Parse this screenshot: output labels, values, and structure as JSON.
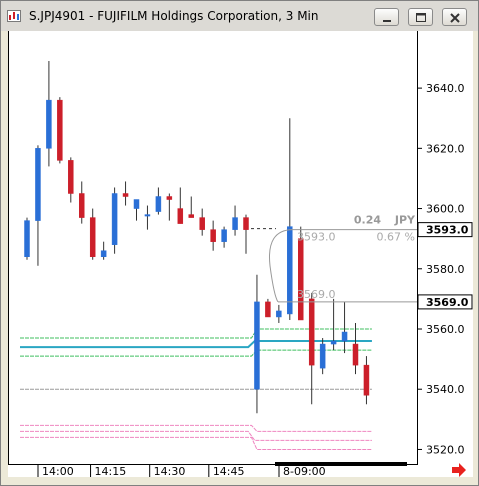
{
  "window": {
    "title": "S.JPJ4901 - FUJIFILM Holdings Corporation, 3 Min",
    "buttons": [
      "minimize",
      "maximize",
      "close"
    ]
  },
  "colors": {
    "up": "#2a6fd6",
    "down": "#cc1f2a",
    "line_blue": "#2aa6c3",
    "line_green": "#3fbf5f",
    "line_pink": "#ef86c0",
    "line_gray": "#9a9a9a",
    "scroll_arrow": "#e8221e"
  },
  "chart_data": {
    "type": "candlestick",
    "ylim": [
      3515,
      3650
    ],
    "yticks": [
      3520,
      3540,
      3560,
      3580,
      3600,
      3620,
      3640
    ],
    "ytick_labels": [
      "3520.0",
      "3540.0",
      "3560.0",
      "3580.0",
      "3600.0",
      "3620.0",
      "3640.0"
    ],
    "xtick_labels": [
      "14:00",
      "14:15",
      "14:30",
      "14:45",
      "8-09:00"
    ],
    "grid": false,
    "candles": [
      {
        "open": 3584,
        "high": 3597,
        "low": 3583,
        "close": 3596
      },
      {
        "open": 3596,
        "high": 3621,
        "low": 3581,
        "close": 3620
      },
      {
        "open": 3620,
        "high": 3649,
        "low": 3614,
        "close": 3636
      },
      {
        "open": 3636,
        "high": 3637,
        "low": 3615,
        "close": 3616
      },
      {
        "open": 3616,
        "high": 3617,
        "low": 3602,
        "close": 3605
      },
      {
        "open": 3605,
        "high": 3609,
        "low": 3595,
        "close": 3597
      },
      {
        "open": 3597,
        "high": 3600,
        "low": 3583,
        "close": 3584
      },
      {
        "open": 3584,
        "high": 3589,
        "low": 3583,
        "close": 3586
      },
      {
        "open": 3588,
        "high": 3607,
        "low": 3585,
        "close": 3605
      },
      {
        "open": 3605,
        "high": 3609,
        "low": 3601,
        "close": 3604
      },
      {
        "open": 3600,
        "high": 3603,
        "low": 3596,
        "close": 3603
      },
      {
        "open": 3598,
        "high": 3601,
        "low": 3593,
        "close": 3598
      },
      {
        "open": 3599,
        "high": 3607,
        "low": 3598,
        "close": 3604
      },
      {
        "open": 3604,
        "high": 3605,
        "low": 3596,
        "close": 3603
      },
      {
        "open": 3600,
        "high": 3607,
        "low": 3595,
        "close": 3595
      },
      {
        "open": 3598,
        "high": 3604,
        "low": 3597,
        "close": 3597
      },
      {
        "open": 3597,
        "high": 3600,
        "low": 3591,
        "close": 3593
      },
      {
        "open": 3593,
        "high": 3596,
        "low": 3586,
        "close": 3589
      },
      {
        "open": 3589,
        "high": 3594,
        "low": 3587,
        "close": 3593
      },
      {
        "open": 3593,
        "high": 3601,
        "low": 3591,
        "close": 3597
      },
      {
        "open": 3597,
        "high": 3598,
        "low": 3585,
        "close": 3593
      },
      {
        "open": 3540,
        "high": 3578,
        "low": 3532,
        "close": 3569
      },
      {
        "open": 3569,
        "high": 3570,
        "low": 3564,
        "close": 3564
      },
      {
        "open": 3564,
        "high": 3568,
        "low": 3562,
        "close": 3566
      },
      {
        "open": 3565,
        "high": 3630,
        "low": 3563,
        "close": 3594
      },
      {
        "open": 3590,
        "high": 3594,
        "low": 3563,
        "close": 3563
      },
      {
        "open": 3570,
        "high": 3572,
        "low": 3535,
        "close": 3548
      },
      {
        "open": 3547,
        "high": 3557,
        "low": 3545,
        "close": 3555
      },
      {
        "open": 3555,
        "high": 3570,
        "low": 3553,
        "close": 3556
      },
      {
        "open": 3556,
        "high": 3569,
        "low": 3552,
        "close": 3559
      },
      {
        "open": 3555,
        "high": 3562,
        "low": 3545,
        "close": 3548
      },
      {
        "open": 3548,
        "high": 3551,
        "low": 3535,
        "close": 3538
      }
    ],
    "levels": [
      {
        "name": "blue",
        "segments": [
          {
            "from": 0,
            "to": 20.2,
            "y": 3554
          },
          {
            "from": 20.8,
            "to": 31.5,
            "y": 3556
          }
        ]
      },
      {
        "name": "green_upper",
        "segments": [
          {
            "from": 0,
            "to": 20.5,
            "y": 3557
          },
          {
            "from": 21,
            "to": 31.5,
            "y": 3560
          }
        ]
      },
      {
        "name": "green_lower",
        "segments": [
          {
            "from": 0,
            "to": 20.5,
            "y": 3551
          },
          {
            "from": 21,
            "to": 31.5,
            "y": 3553
          }
        ]
      },
      {
        "name": "gray",
        "segments": [
          {
            "from": 0,
            "to": 31.5,
            "y": 3540
          }
        ]
      },
      {
        "name": "pink_1",
        "segments": [
          {
            "from": 0,
            "to": 20.5,
            "y": 3528
          },
          {
            "from": 21,
            "to": 31.5,
            "y": 3526
          }
        ]
      },
      {
        "name": "pink_2",
        "segments": [
          {
            "from": 0,
            "to": 20.2,
            "y": 3526
          },
          {
            "from": 20.8,
            "to": 31.5,
            "y": 3523
          }
        ]
      },
      {
        "name": "pink_3",
        "segments": [
          {
            "from": 0,
            "to": 20.5,
            "y": 3524
          },
          {
            "from": 21,
            "to": 31.5,
            "y": 3520
          }
        ]
      }
    ],
    "price_tags": [
      {
        "label": "3593.0",
        "value": 3593
      },
      {
        "label": "3569.0",
        "value": 3569
      }
    ],
    "annotations": {
      "change_value": "0.24",
      "change_unit": "JPY",
      "change_percent": "0.67",
      "percent_sign": "%",
      "top_price": "3593.0",
      "bottom_price": "3569.0"
    }
  }
}
